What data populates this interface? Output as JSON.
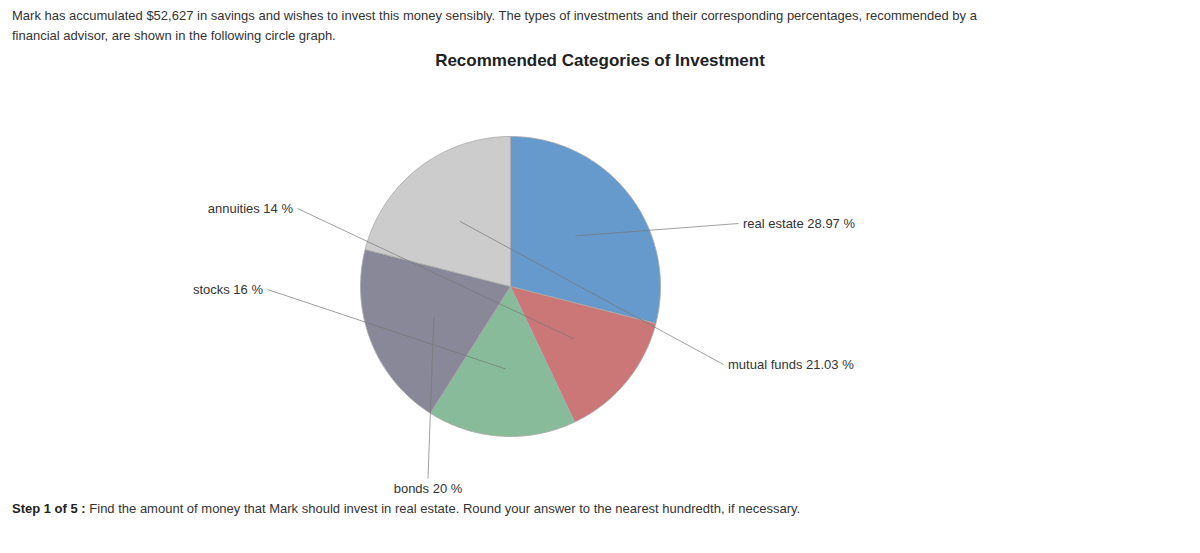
{
  "chart_data": {
    "type": "pie",
    "title": "Recommended Categories of Investment",
    "subtitle": "Mark has accumulated $52,627 in savings and wishes to invest this money sensibly. The types of investments and their corresponding percentages, recommended by a\nfinancial advisor, are shown in the following circle graph.",
    "categories": [
      "real estate",
      "annuities",
      "stocks",
      "bonds",
      "mutual funds"
    ],
    "values": [
      28.97,
      14.0,
      16.0,
      20.0,
      21.03
    ],
    "value_labels": [
      "real estate 28.97 %",
      "annuities 14 %",
      "stocks 16 %",
      "bonds 20 %",
      "mutual funds 21.03 %"
    ],
    "colors": [
      "#6699cc",
      "#cc7777",
      "#88bb99",
      "#888899",
      "#cccccc"
    ],
    "data_labels": true,
    "annotations": [
      "Step 1 of 5 :",
      "Find the amount of money that Mark should invest in real estate. Round your answer to the nearest hundredth, if necessary."
    ]
  }
}
